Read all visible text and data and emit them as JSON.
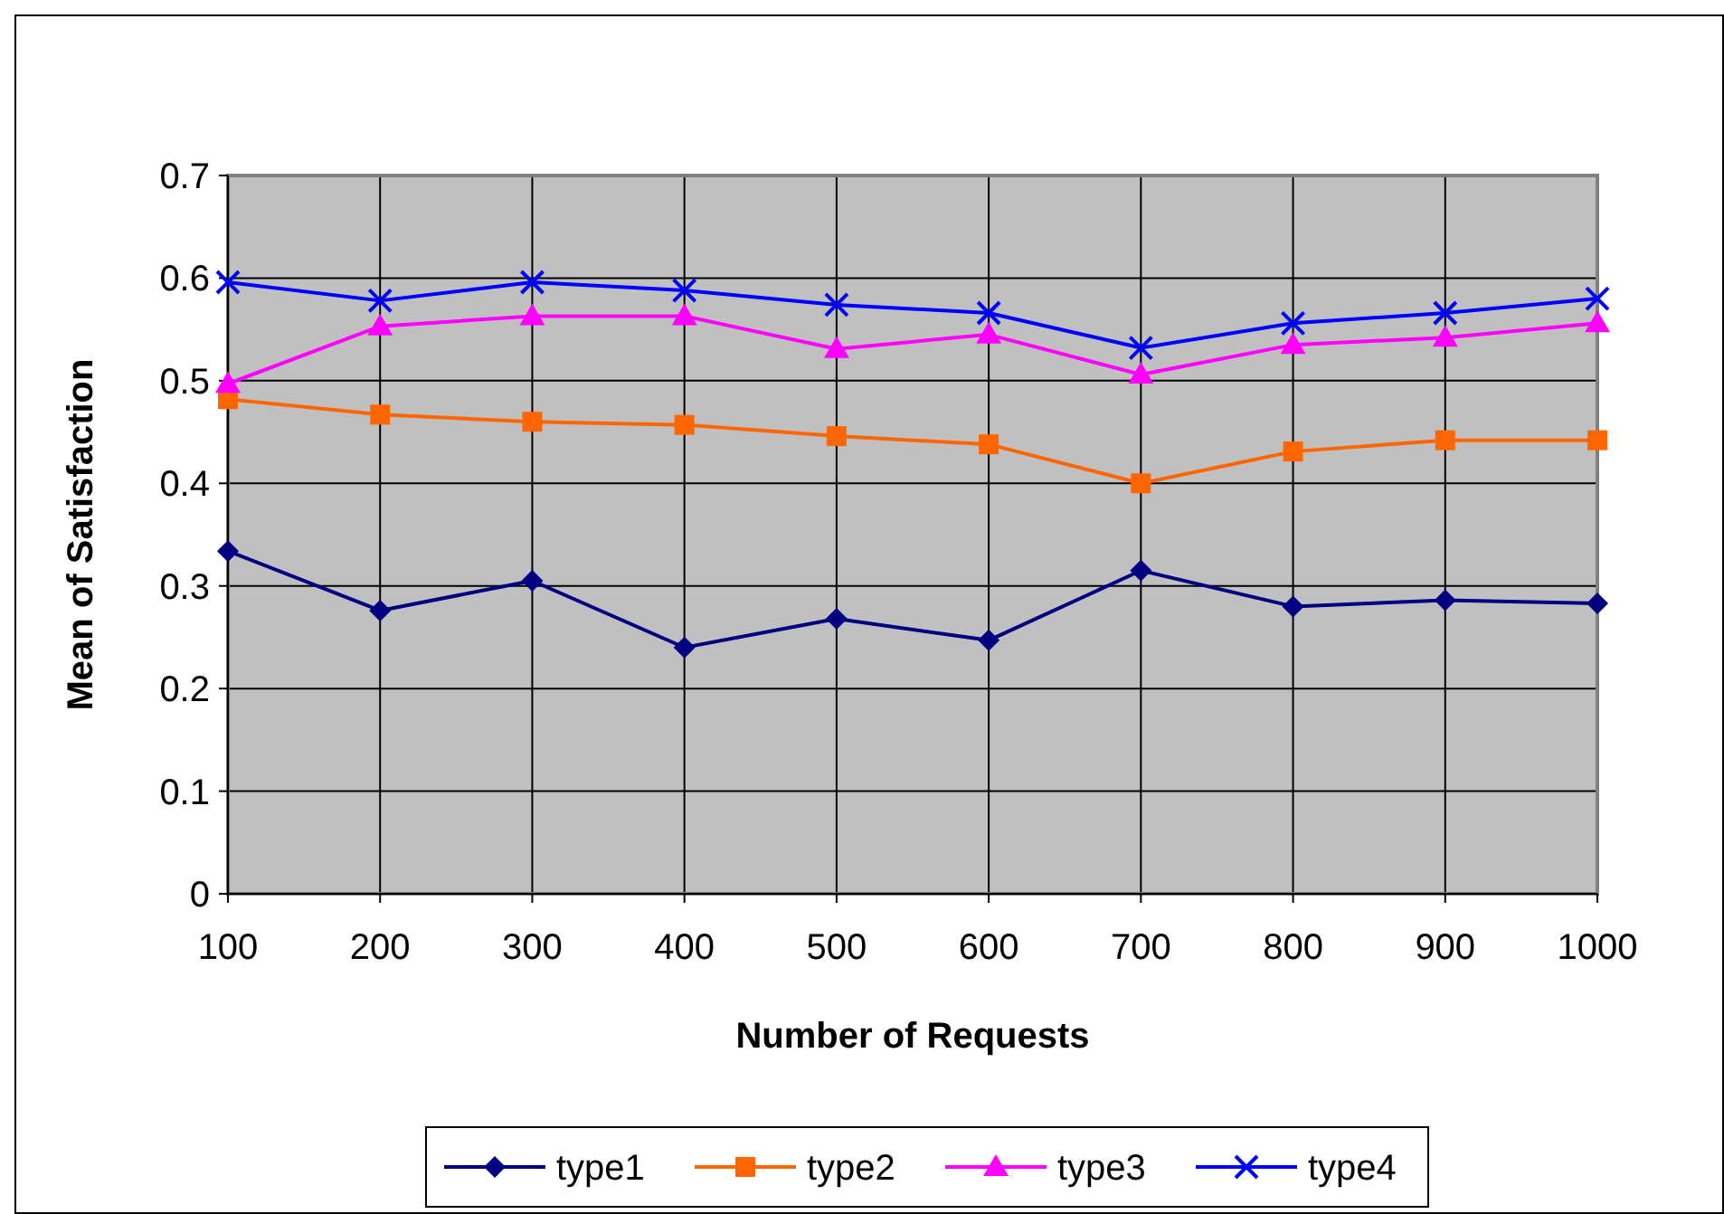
{
  "chart_data": {
    "type": "line",
    "xlabel": "Number of Requests",
    "ylabel": "Mean of Satisfaction",
    "x": [
      100,
      200,
      300,
      400,
      500,
      600,
      700,
      800,
      900,
      1000
    ],
    "xlim": [
      100,
      1000
    ],
    "xticks": [
      100,
      200,
      300,
      400,
      500,
      600,
      700,
      800,
      900,
      1000
    ],
    "ylim": [
      0,
      0.7
    ],
    "yticks": [
      0,
      0.1,
      0.2,
      0.3,
      0.4,
      0.5,
      0.6,
      0.7
    ],
    "grid": true,
    "legend": "bottom",
    "series": [
      {
        "name": "type1",
        "color": "#000080",
        "marker": "diamond",
        "values": [
          0.334,
          0.276,
          0.305,
          0.24,
          0.268,
          0.247,
          0.315,
          0.28,
          0.286,
          0.283
        ]
      },
      {
        "name": "type2",
        "color": "#ff6600",
        "marker": "square",
        "values": [
          0.482,
          0.467,
          0.46,
          0.457,
          0.446,
          0.438,
          0.4,
          0.431,
          0.442,
          0.442
        ]
      },
      {
        "name": "type3",
        "color": "#ff00ff",
        "marker": "triangle",
        "values": [
          0.497,
          0.553,
          0.563,
          0.563,
          0.531,
          0.545,
          0.506,
          0.535,
          0.542,
          0.556
        ]
      },
      {
        "name": "type4",
        "color": "#0000ff",
        "marker": "cross",
        "values": [
          0.596,
          0.578,
          0.596,
          0.588,
          0.574,
          0.566,
          0.532,
          0.556,
          0.566,
          0.58
        ]
      }
    ]
  }
}
